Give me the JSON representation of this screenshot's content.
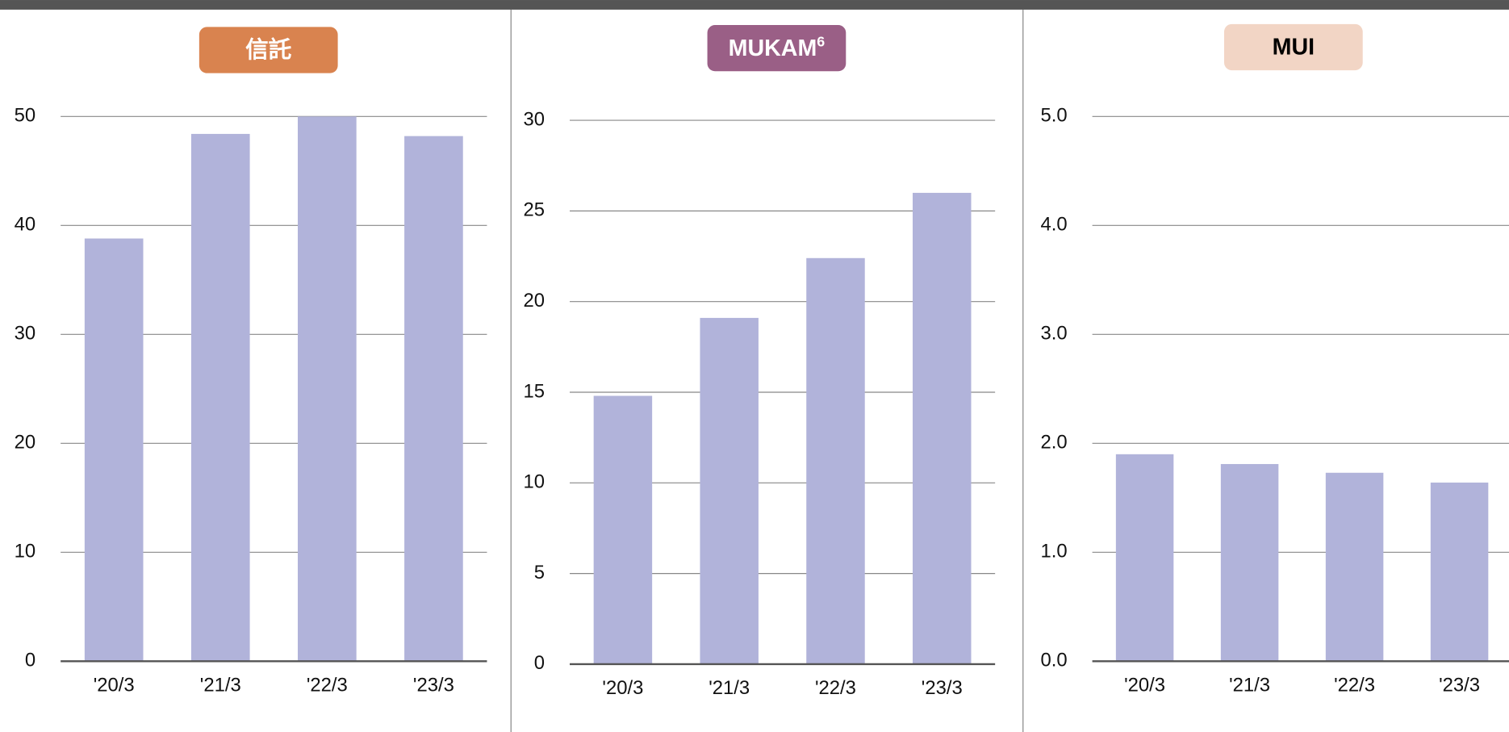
{
  "chart_data": [
    {
      "type": "bar",
      "title": "信託",
      "title_color": "#d9834f",
      "title_text_color": "#ffffff",
      "categories": [
        "'20/3",
        "'21/3",
        "'22/3",
        "'23/3"
      ],
      "values": [
        38.8,
        48.4,
        50.0,
        48.2
      ],
      "color": "#b1b3da",
      "ylim": [
        0,
        50
      ],
      "yticks": [
        0,
        10,
        20,
        30,
        40,
        50
      ],
      "grid": true
    },
    {
      "type": "bar",
      "title": "MUKAM",
      "title_superscript": "6",
      "title_color": "#9a5f86",
      "title_text_color": "#ffffff",
      "categories": [
        "'20/3",
        "'21/3",
        "'22/3",
        "'23/3"
      ],
      "values": [
        14.8,
        19.1,
        22.4,
        26.0
      ],
      "color": "#b1b3da",
      "ylim": [
        0,
        30
      ],
      "yticks": [
        0,
        5,
        10,
        15,
        20,
        25,
        30
      ],
      "grid": true
    },
    {
      "type": "bar",
      "title": "MUI",
      "title_color": "#f2d5c5",
      "title_text_color": "#000000",
      "categories": [
        "'20/3",
        "'21/3",
        "'22/3",
        "'23/3"
      ],
      "values": [
        1.9,
        1.81,
        1.73,
        1.64
      ],
      "color": "#b1b3da",
      "ylim": [
        0,
        5
      ],
      "yticks": [
        {
          "value": 0,
          "label": "0.0"
        },
        {
          "value": 1,
          "label": "1.0"
        },
        {
          "value": 2,
          "label": "2.0"
        },
        {
          "value": 3,
          "label": "3.0"
        },
        {
          "value": 4,
          "label": "4.0"
        },
        {
          "value": 5,
          "label": "5.0"
        }
      ],
      "grid": true
    }
  ]
}
